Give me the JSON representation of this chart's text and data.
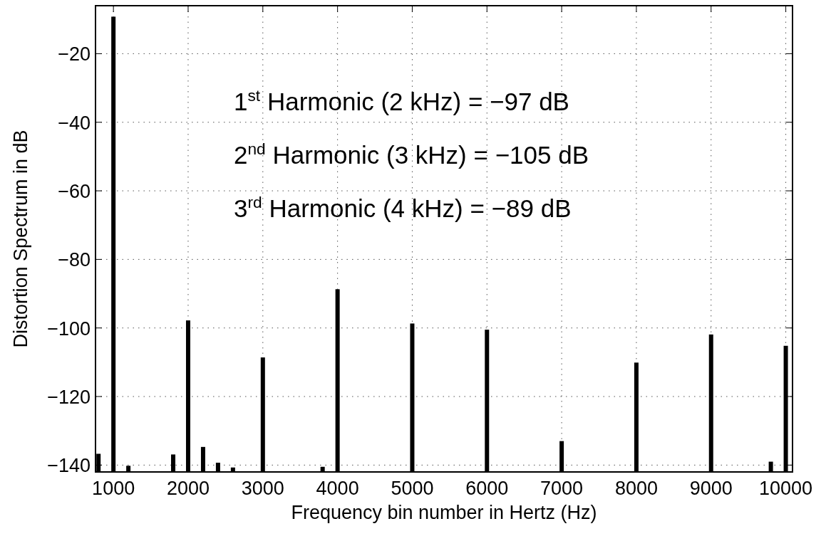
{
  "chart_data": {
    "type": "bar",
    "xlabel": "Frequency bin number in Hertz (Hz)",
    "ylabel": "Distortion Spectrum in dB",
    "x": [
      800,
      1000,
      1200,
      1800,
      2000,
      2200,
      2400,
      2600,
      3000,
      3800,
      4000,
      5000,
      6000,
      7000,
      8000,
      9000,
      9800,
      10000
    ],
    "values": [
      5.3,
      132.8,
      1.8,
      5.1,
      44.2,
      7.3,
      2.7,
      1.3,
      33.4,
      1.5,
      53.3,
      43.3,
      41.5,
      9,
      31.9,
      40.1,
      3,
      36.8
    ],
    "base": [
      -142,
      -142,
      -142,
      -142,
      -142,
      -142,
      -142,
      -142,
      -142,
      -142,
      -142,
      -142,
      -142,
      -142,
      -142,
      -142,
      -142,
      -142
    ],
    "color": "#000000",
    "xlim": [
      760,
      10090
    ],
    "ylim": [
      -142,
      -6
    ],
    "xticks": [
      1000,
      2000,
      3000,
      4000,
      5000,
      6000,
      7000,
      8000,
      9000,
      10000
    ],
    "yticks": [
      {
        "value": -20,
        "label": "−20"
      },
      {
        "value": -40,
        "label": "−40"
      },
      {
        "value": -60,
        "label": "−60"
      },
      {
        "value": -80,
        "label": "−80"
      },
      {
        "value": -100,
        "label": "−100"
      },
      {
        "value": -120,
        "label": "−120"
      },
      {
        "value": -140,
        "label": "−140"
      }
    ],
    "grid": true,
    "line_style": "dotted",
    "annotations": [
      "1$^{st}$ Harmonic (2 kHz) = −97 dB",
      "2$^{nd}$ Harmonic (3 kHz) = −105 dB",
      "3$^{rd}$ Harmonic (4 kHz) = −89 dB"
    ]
  }
}
